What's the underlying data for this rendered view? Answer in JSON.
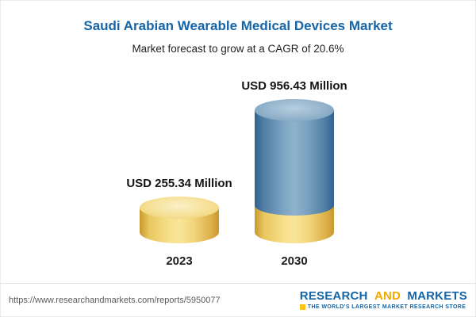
{
  "header": {
    "title": "Saudi Arabian Wearable Medical Devices Market",
    "subtitle": "Market forecast to grow at a CAGR of 20.6%"
  },
  "chart_data": {
    "type": "bar",
    "title": "Saudi Arabian Wearable Medical Devices Market",
    "subtitle": "Market forecast to grow at a CAGR of 20.6%",
    "cagr_percent": 20.6,
    "categories": [
      "2023",
      "2030"
    ],
    "values": [
      255.34,
      956.43
    ],
    "value_labels": [
      "USD 255.34 Million",
      "USD 956.43 Million"
    ],
    "unit": "USD Million",
    "ylim": [
      0,
      956.43
    ],
    "grid": false,
    "legend": false,
    "bar_style": "3d-cylinder",
    "bar_colors": [
      "#f2d57b",
      "#7fa6c4"
    ],
    "bar_2030_base_color": "#f2d57b"
  },
  "footer": {
    "url": "https://www.researchandmarkets.com/reports/5950077",
    "logo": {
      "word1": "RESEARCH",
      "word2": "AND",
      "word3": "MARKETS",
      "tagline": "THE WORLD'S LARGEST MARKET RESEARCH STORE"
    }
  },
  "colors": {
    "title_blue": "#1565a9",
    "gold": "#f2d57b",
    "blue": "#7fa6c4",
    "logo_blue": "#1464a5",
    "logo_gold": "#f5a800",
    "logo_square_yellow": "#ffc20e"
  }
}
